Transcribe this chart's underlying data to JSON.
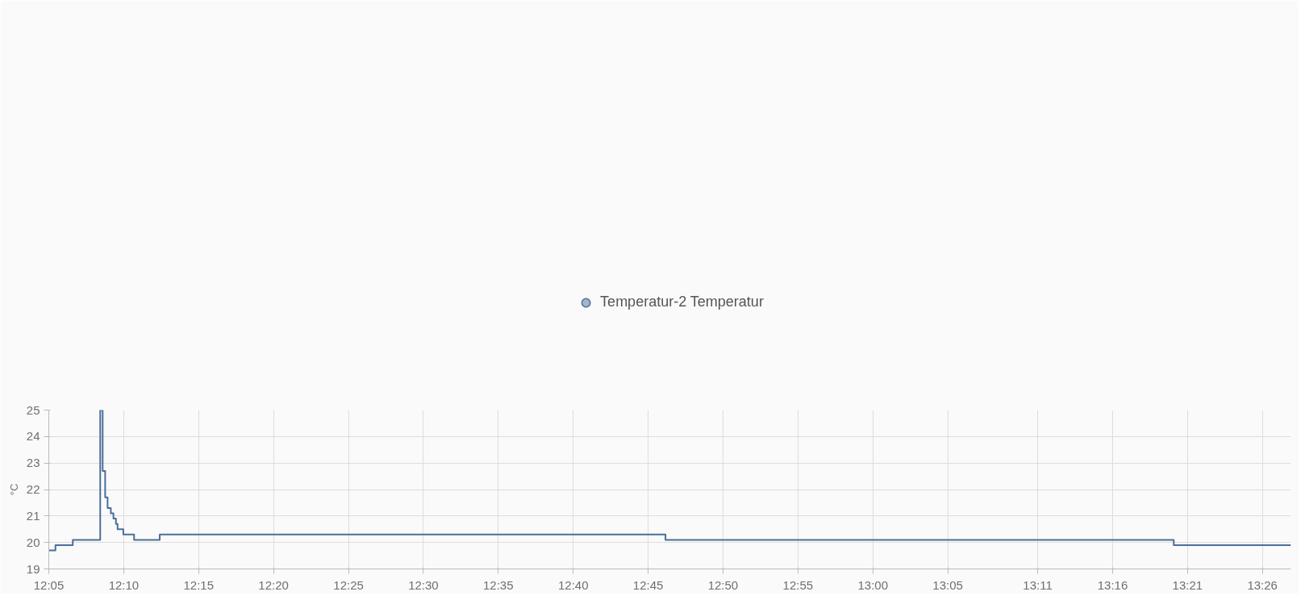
{
  "chart_data": {
    "type": "step",
    "ylabel": "°C",
    "legend": "top",
    "grid": true,
    "marker": "none",
    "line_style": "solid",
    "xlim": [
      12.0833,
      13.465
    ],
    "ylim": [
      19,
      25
    ],
    "yticks": [
      19,
      20,
      21,
      22,
      23,
      24,
      25
    ],
    "xticks": [
      {
        "value": 12.0833,
        "label": "12:05"
      },
      {
        "value": 12.1667,
        "label": "12:10"
      },
      {
        "value": 12.25,
        "label": "12:15"
      },
      {
        "value": 12.3333,
        "label": "12:20"
      },
      {
        "value": 12.4167,
        "label": "12:25"
      },
      {
        "value": 12.5,
        "label": "12:30"
      },
      {
        "value": 12.5833,
        "label": "12:35"
      },
      {
        "value": 12.6667,
        "label": "12:40"
      },
      {
        "value": 12.75,
        "label": "12:45"
      },
      {
        "value": 12.8333,
        "label": "12:50"
      },
      {
        "value": 12.9167,
        "label": "12:55"
      },
      {
        "value": 13.0,
        "label": "13:00"
      },
      {
        "value": 13.0833,
        "label": "13:05"
      },
      {
        "value": 13.1833,
        "label": "13:11"
      },
      {
        "value": 13.2667,
        "label": "13:16"
      },
      {
        "value": 13.35,
        "label": "13:21"
      },
      {
        "value": 13.4333,
        "label": "13:26"
      }
    ],
    "series": [
      {
        "name": "Temperatur-2 Temperatur",
        "color": "#4a6f9a",
        "x": [
          12.0833,
          12.0907,
          12.11,
          12.1405,
          12.1432,
          12.146,
          12.1487,
          12.1523,
          12.1552,
          12.158,
          12.1598,
          12.1662,
          12.1782,
          12.2067,
          12.7693,
          13.3347,
          13.465
        ],
        "values": [
          19.7,
          19.9,
          20.1,
          25,
          22.7,
          21.7,
          21.3,
          21.1,
          20.9,
          20.7,
          20.5,
          20.3,
          20.1,
          20.3,
          20.1,
          19.9,
          19.9
        ]
      }
    ]
  }
}
